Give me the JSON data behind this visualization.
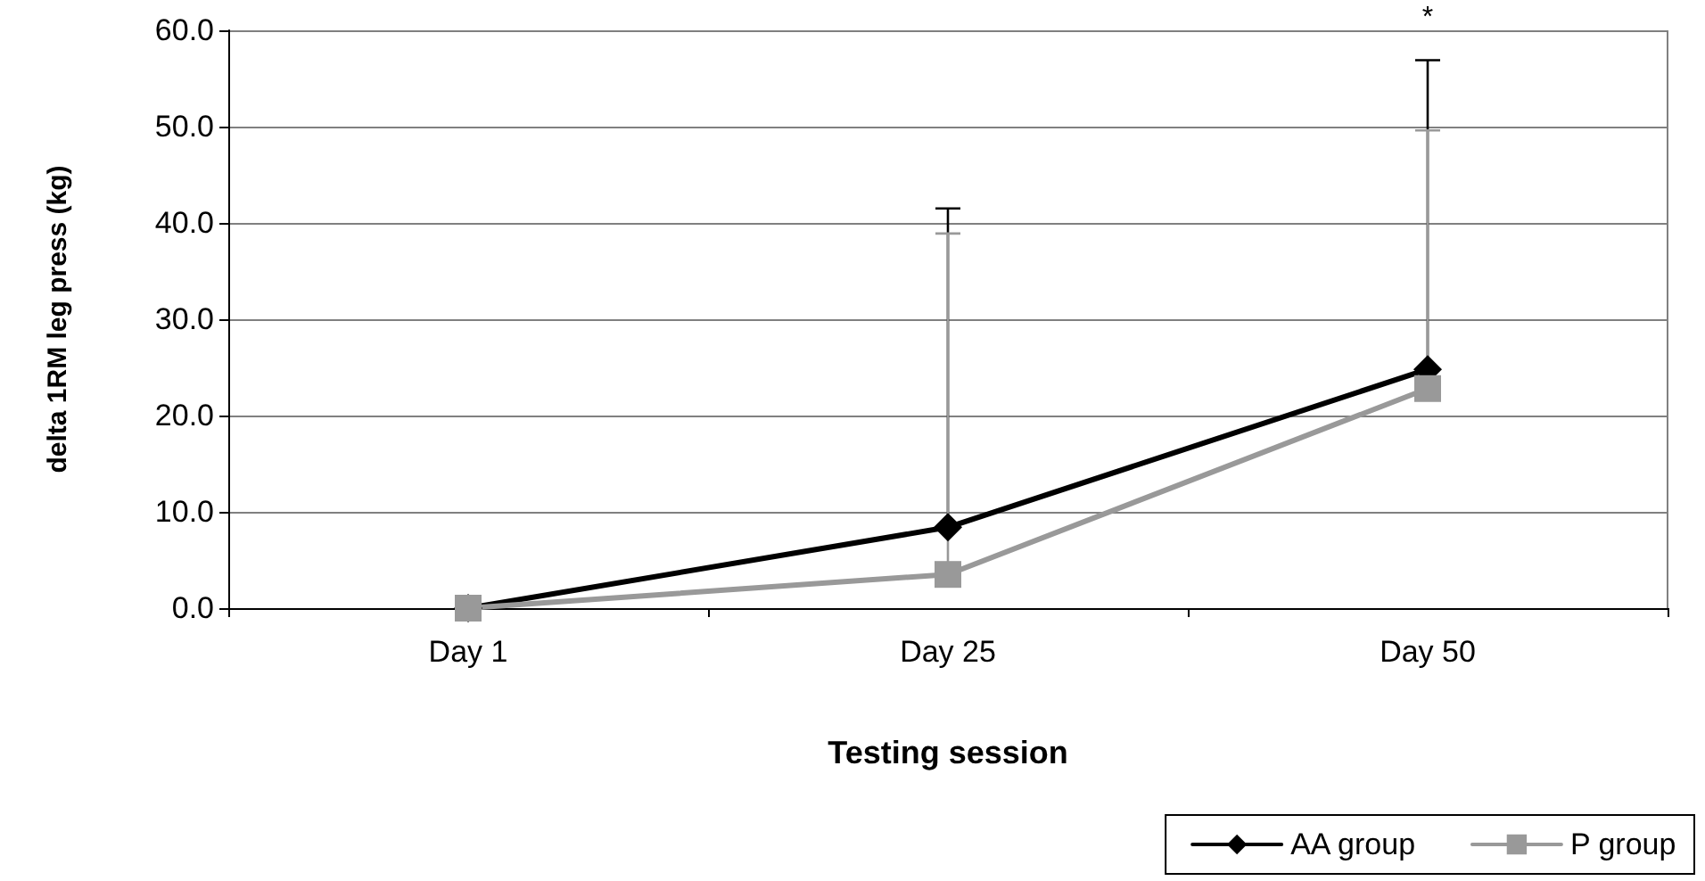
{
  "chart_data": {
    "type": "line",
    "xlabel": "Testing session",
    "ylabel": "delta 1RM leg press (kg)",
    "categories": [
      "Day 1",
      "Day 25",
      "Day 50"
    ],
    "series": [
      {
        "name": "AA group",
        "color": "#000000",
        "marker": "diamond",
        "values": [
          0,
          8.4,
          24.8
        ],
        "errors": [
          null,
          [
            8.4,
            41.5
          ],
          [
            24.8,
            56.9
          ]
        ]
      },
      {
        "name": "P group",
        "color": "#999999",
        "marker": "square",
        "values": [
          0,
          3.5,
          22.8
        ],
        "errors": [
          null,
          [
            3.5,
            38.9
          ],
          [
            22.8,
            49.6
          ]
        ]
      }
    ],
    "ylim": [
      0,
      60
    ],
    "yticks": [
      {
        "value": 0,
        "label": "0.0"
      },
      {
        "value": 10,
        "label": "10.0"
      },
      {
        "value": 20,
        "label": "20.0"
      },
      {
        "value": 30,
        "label": "30.0"
      },
      {
        "value": 40,
        "label": "40.0"
      },
      {
        "value": 50,
        "label": "50.0"
      },
      {
        "value": 60,
        "label": "60.0"
      }
    ],
    "annotations": [
      "*"
    ],
    "grid": "y",
    "legend": "bottom right",
    "line_style": "solid"
  }
}
